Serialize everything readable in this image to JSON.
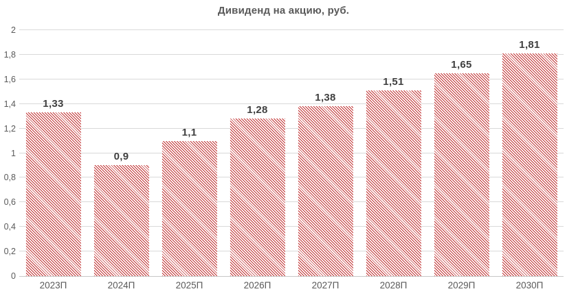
{
  "chart_data": {
    "type": "bar",
    "title": "Дивиденд на акцию, руб.",
    "categories": [
      "2023П",
      "2024П",
      "2025П",
      "2026П",
      "2027П",
      "2028П",
      "2029П",
      "2030П"
    ],
    "values": [
      1.33,
      0.9,
      1.1,
      1.28,
      1.38,
      1.51,
      1.65,
      1.81
    ],
    "values_display": [
      "1,33",
      "0,9",
      "1,1",
      "1,28",
      "1,38",
      "1,51",
      "1,65",
      "1,81"
    ],
    "xlabel": "",
    "ylabel": "",
    "ylim": [
      0,
      2
    ],
    "y_ticks": [
      {
        "value": 0,
        "label": "0"
      },
      {
        "value": 0.2,
        "label": "0,2"
      },
      {
        "value": 0.4,
        "label": "0,4"
      },
      {
        "value": 0.6,
        "label": "0,6"
      },
      {
        "value": 0.8,
        "label": "0,8"
      },
      {
        "value": 1,
        "label": "1"
      },
      {
        "value": 1.2,
        "label": "1,2"
      },
      {
        "value": 1.4,
        "label": "1,4"
      },
      {
        "value": 1.6,
        "label": "1,6"
      },
      {
        "value": 1.8,
        "label": "1,8"
      },
      {
        "value": 2,
        "label": "2"
      }
    ],
    "grid": true,
    "legend": false,
    "bar_style": {
      "fill": "hatch-diagonal-down",
      "hatch_color": "#c03030",
      "bar_width_fraction": 0.81
    },
    "style_colors": {
      "gridline": "#d9d9d9",
      "axis_line": "#c6c6c6",
      "tick_label": "#595959",
      "data_label": "#3f3f3f",
      "title": "#595959",
      "background": "#ffffff"
    }
  }
}
